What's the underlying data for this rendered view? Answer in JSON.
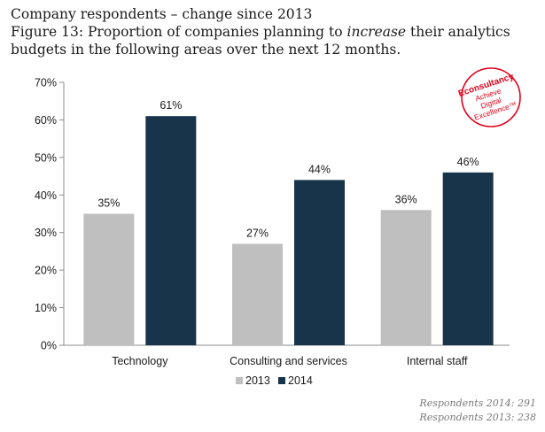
{
  "header": {
    "subtitle": "Company respondents – change since 2013",
    "title_pre": "Figure 13: Proportion of companies planning to ",
    "title_em": "increase",
    "title_post": " their analytics budgets in the following areas over the next 12 months."
  },
  "logo": {
    "brand": "Econsultancy",
    "line1": "Achieve",
    "line2": "Digital",
    "line3": "Excellence™",
    "color": "#e2001a"
  },
  "notes": {
    "respondents_2014": "Respondents 2014: 291",
    "respondents_2013": "Respondents 2013: 238"
  },
  "chart_data": {
    "type": "bar",
    "title": "Figure 13: Proportion of companies planning to increase their analytics budgets in the following areas over the next 12 months.",
    "categories": [
      "Technology",
      "Consulting and services",
      "Internal staff"
    ],
    "series": [
      {
        "name": "2013",
        "values": [
          35,
          27,
          36
        ],
        "labels": [
          "35%",
          "27%",
          "36%"
        ],
        "color": "#bfbfbf"
      },
      {
        "name": "2014",
        "values": [
          61,
          44,
          46
        ],
        "labels": [
          "61%",
          "44%",
          "46%"
        ],
        "color": "#17344a"
      }
    ],
    "ylim": [
      0,
      70
    ],
    "yticks": [
      0,
      10,
      20,
      30,
      40,
      50,
      60,
      70
    ],
    "ytick_labels": [
      "0%",
      "10%",
      "20%",
      "30%",
      "40%",
      "50%",
      "60%",
      "70%"
    ],
    "xlabel": "",
    "ylabel": "",
    "grid": false,
    "legend_position": "bottom"
  }
}
